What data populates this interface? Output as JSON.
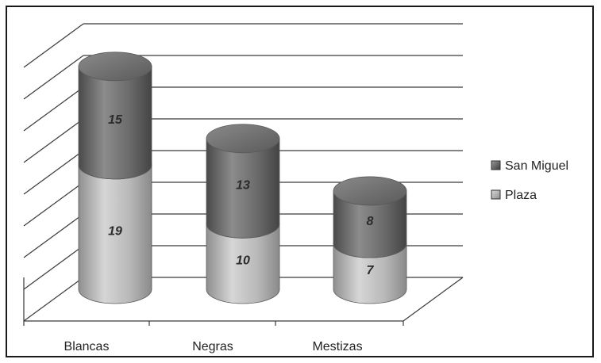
{
  "chart_data": {
    "type": "bar",
    "stacked": true,
    "style": "3d-cylinder",
    "categories": [
      "Blancas",
      "Negras",
      "Mestizas"
    ],
    "series": [
      {
        "name": "Plaza",
        "values": [
          19,
          10,
          7
        ],
        "color": "#b3b3b3"
      },
      {
        "name": "San Miguel",
        "values": [
          15,
          13,
          8
        ],
        "color": "#6e6e6e"
      }
    ],
    "ylim": [
      0,
      40
    ],
    "grid": true,
    "legend": "right"
  }
}
